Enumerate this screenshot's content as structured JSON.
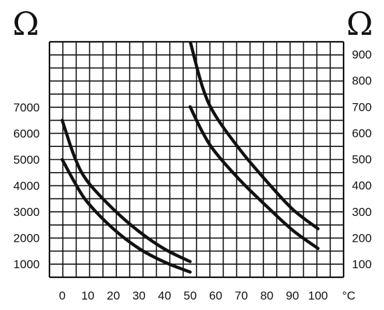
{
  "chart_data": {
    "type": "line",
    "left_axis": {
      "unit_symbol": "Ω",
      "ticks": [
        "1000",
        "2000",
        "3000",
        "4000",
        "5000",
        "6000",
        "7000"
      ],
      "tick_values": [
        1000,
        2000,
        3000,
        4000,
        5000,
        6000,
        7000
      ],
      "range": [
        500,
        7000
      ]
    },
    "right_axis": {
      "unit_symbol": "Ω",
      "ticks": [
        "100",
        "200",
        "300",
        "400",
        "500",
        "600",
        "700",
        "800",
        "900"
      ],
      "tick_values": [
        100,
        200,
        300,
        400,
        500,
        600,
        700,
        800,
        900
      ],
      "range": [
        50,
        900
      ]
    },
    "x_axis": {
      "unit": "°C",
      "ticks": [
        "0",
        "10",
        "20",
        "30",
        "40",
        "50",
        "60",
        "70",
        "80",
        "90",
        "100"
      ],
      "tick_values": [
        0,
        10,
        20,
        30,
        40,
        50,
        60,
        70,
        80,
        90,
        100
      ],
      "range": [
        -5,
        110
      ]
    },
    "grid": true,
    "series": [
      {
        "axis": "left",
        "points": [
          [
            0,
            6500
          ],
          [
            5,
            5050
          ],
          [
            10,
            4150
          ],
          [
            20,
            3100
          ],
          [
            30,
            2250
          ],
          [
            40,
            1580
          ],
          [
            50,
            1100
          ]
        ]
      },
      {
        "axis": "left",
        "points": [
          [
            0,
            5000
          ],
          [
            5,
            4100
          ],
          [
            10,
            3350
          ],
          [
            20,
            2350
          ],
          [
            30,
            1600
          ],
          [
            40,
            1080
          ],
          [
            50,
            700
          ]
        ]
      },
      {
        "axis": "right",
        "points": [
          [
            50,
            950
          ],
          [
            55,
            770
          ],
          [
            60,
            665
          ],
          [
            70,
            530
          ],
          [
            80,
            415
          ],
          [
            90,
            310
          ],
          [
            100,
            235
          ]
        ]
      },
      {
        "axis": "right",
        "points": [
          [
            50,
            700
          ],
          [
            55,
            600
          ],
          [
            60,
            525
          ],
          [
            70,
            415
          ],
          [
            80,
            320
          ],
          [
            90,
            230
          ],
          [
            100,
            160
          ]
        ]
      }
    ]
  }
}
